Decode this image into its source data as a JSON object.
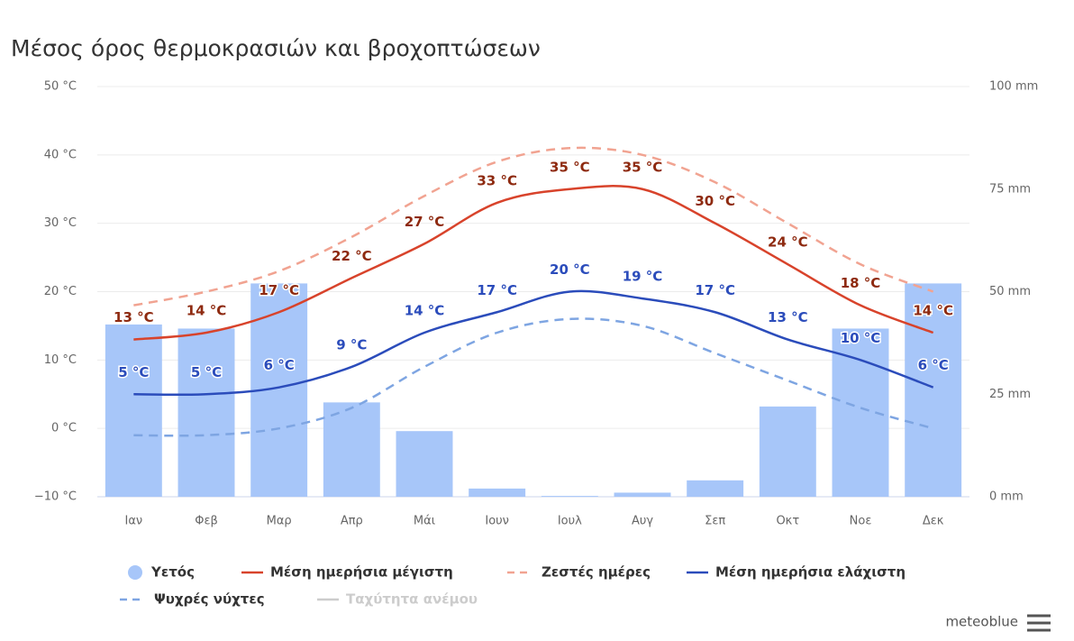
{
  "chart_data": {
    "type": "combo",
    "title": "Μέσος όρος θερμοκρασιών και βροχοπτώσεων",
    "categories": [
      "Ιαν",
      "Φεβ",
      "Μαρ",
      "Απρ",
      "Μάι",
      "Ιουν",
      "Ιουλ",
      "Αυγ",
      "Σεπ",
      "Οκτ",
      "Νοε",
      "Δεκ"
    ],
    "ylim": [
      -10,
      50
    ],
    "yticks": [
      {
        "value": -10,
        "label": "−10 °C"
      },
      {
        "value": 0,
        "label": "0 °C"
      },
      {
        "value": 10,
        "label": "10 °C"
      },
      {
        "value": 20,
        "label": "20 °C"
      },
      {
        "value": 30,
        "label": "30 °C"
      },
      {
        "value": 40,
        "label": "40 °C"
      },
      {
        "value": 50,
        "label": "50 °C"
      }
    ],
    "y2lim": [
      0,
      100
    ],
    "y2ticks": [
      {
        "value": 0,
        "label": "0 mm"
      },
      {
        "value": 25,
        "label": "25 mm"
      },
      {
        "value": 50,
        "label": "50 mm"
      },
      {
        "value": 75,
        "label": "75 mm"
      },
      {
        "value": 100,
        "label": "100 mm"
      }
    ],
    "grid": true,
    "legend": "bottom",
    "series": [
      {
        "name": "Υετός",
        "type": "bar",
        "axis": "y2",
        "color": "#a7c6f9",
        "values": [
          42,
          41,
          52,
          23,
          16,
          2,
          0.2,
          1,
          4,
          22,
          41,
          52
        ]
      },
      {
        "name": "Μέση ημερήσια μέγιστη",
        "type": "line",
        "color": "#d8432b",
        "label_color": "#8e2a10",
        "values": [
          13,
          14,
          17,
          22,
          27,
          33,
          35,
          35,
          30,
          24,
          18,
          14
        ],
        "value_labels": [
          "13 °C",
          "14 °C",
          "17 °C",
          "22 °C",
          "27 °C",
          "33 °C",
          "35 °C",
          "35 °C",
          "30 °C",
          "24 °C",
          "18 °C",
          "14 °C"
        ]
      },
      {
        "name": "Ζεστές ημέρες",
        "type": "line",
        "dashed": true,
        "color": "#f1a391",
        "values": [
          18,
          20,
          23,
          28,
          34,
          39,
          41,
          40,
          36,
          30,
          24,
          20
        ]
      },
      {
        "name": "Μέση ημερήσια ελάχιστη",
        "type": "line",
        "color": "#2b4cbb",
        "label_color": "#2b4cbb",
        "values": [
          5,
          5,
          6,
          9,
          14,
          17,
          20,
          19,
          17,
          13,
          10,
          6
        ],
        "value_labels": [
          "5 °C",
          "5 °C",
          "6 °C",
          "9 °C",
          "14 °C",
          "17 °C",
          "20 °C",
          "19 °C",
          "17 °C",
          "13 °C",
          "10 °C",
          "6 °C"
        ]
      },
      {
        "name": "Ψυχρές νύχτες",
        "type": "line",
        "dashed": true,
        "color": "#7ea5e2",
        "values": [
          -1,
          -1,
          0,
          3,
          9,
          14,
          16,
          15,
          11,
          7,
          3,
          0
        ]
      },
      {
        "name": "Ταχύτητα ανέμου",
        "type": "line",
        "color": "#cccccc",
        "visible": false
      }
    ],
    "credit": "meteoblue"
  }
}
